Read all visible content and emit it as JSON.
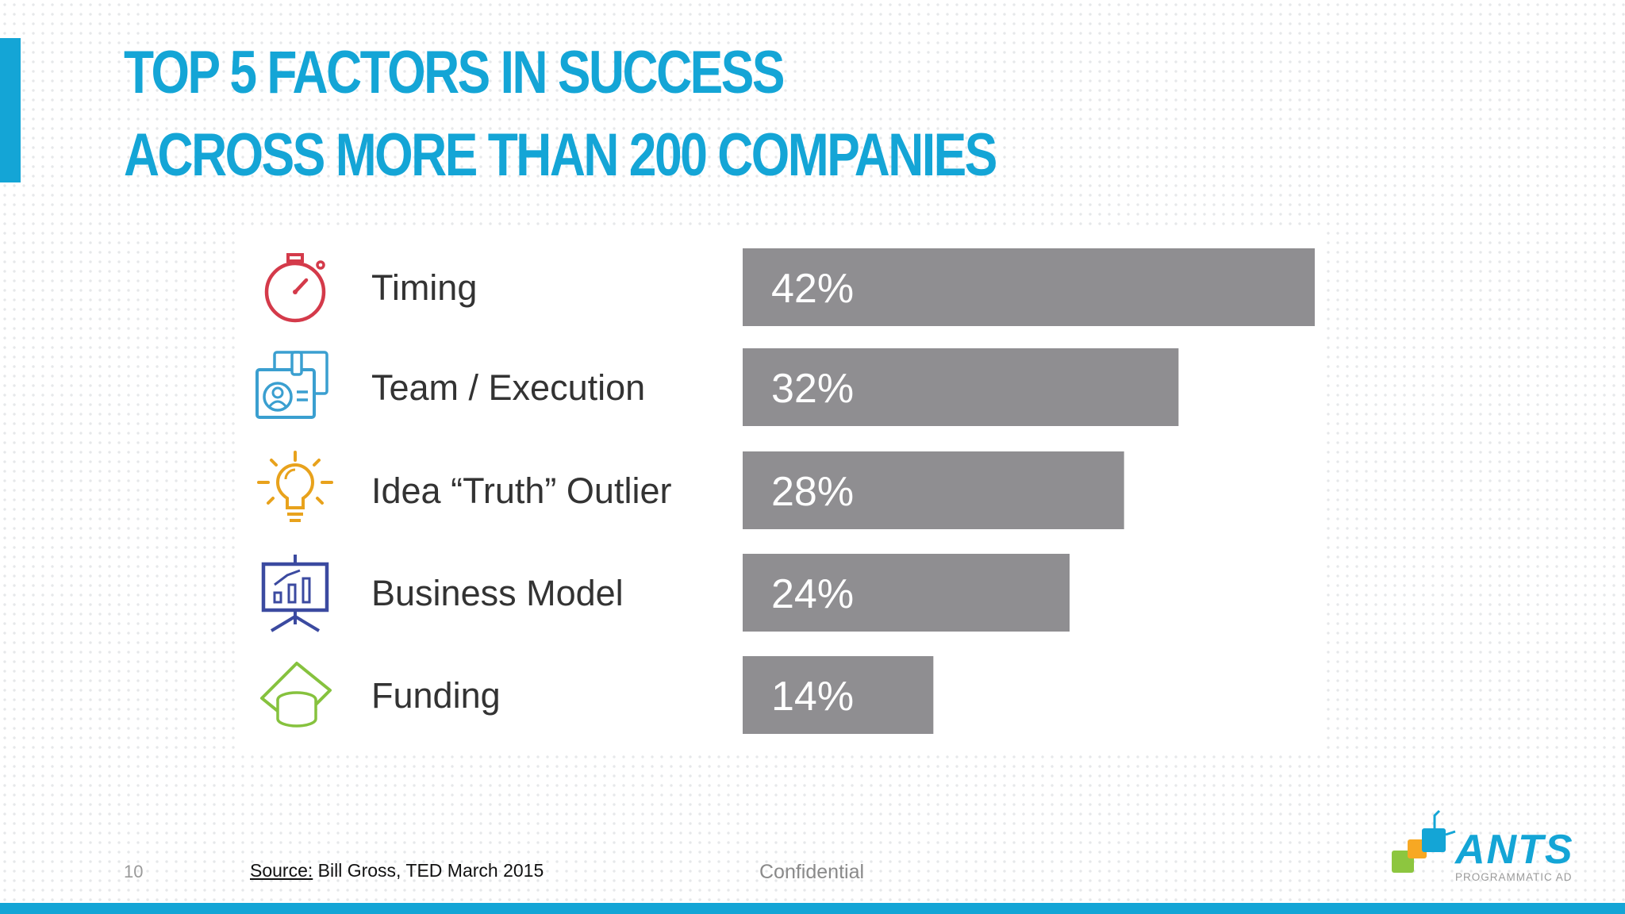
{
  "slide": {
    "title_line1": "TOP 5 FACTORS IN SUCCESS",
    "title_line2": "ACROSS MORE THAN 200 COMPANIES",
    "page_number": "10",
    "source_label": "Source:",
    "source_text": " Bill Gross, TED March 2015",
    "confidential": "Confidential",
    "logo_text": "ANTS",
    "logo_subtext": "PROGRAMMATIC AD"
  },
  "colors": {
    "accent": "#14a5d6",
    "title": "#14a5d6",
    "bar": "#8f8e91",
    "bar_label": "#ffffff",
    "category_text": "#333333",
    "icon_timing": "#d43a4a",
    "icon_team": "#3a9fd0",
    "icon_idea": "#e8a21c",
    "icon_business": "#3b4aa0",
    "icon_funding": "#86c23e",
    "logo_blue": "#14a5d6",
    "logo_green": "#8dc63f",
    "logo_orange": "#f7a823",
    "logo_sub": "#9a9a9a"
  },
  "chart_data": {
    "type": "bar",
    "orientation": "horizontal",
    "title": "",
    "xlabel": "",
    "ylabel": "",
    "xlim": [
      0,
      42
    ],
    "grid": false,
    "categories": [
      "Timing",
      "Team / Execution",
      "Idea “Truth” Outlier",
      "Business Model",
      "Funding"
    ],
    "values": [
      42,
      32,
      28,
      24,
      14
    ],
    "value_labels": [
      "42%",
      "32%",
      "28%",
      "24%",
      "14%"
    ],
    "icons": [
      "stopwatch-icon",
      "id-badge-icon",
      "lightbulb-icon",
      "presentation-chart-icon",
      "money-stack-icon"
    ]
  }
}
